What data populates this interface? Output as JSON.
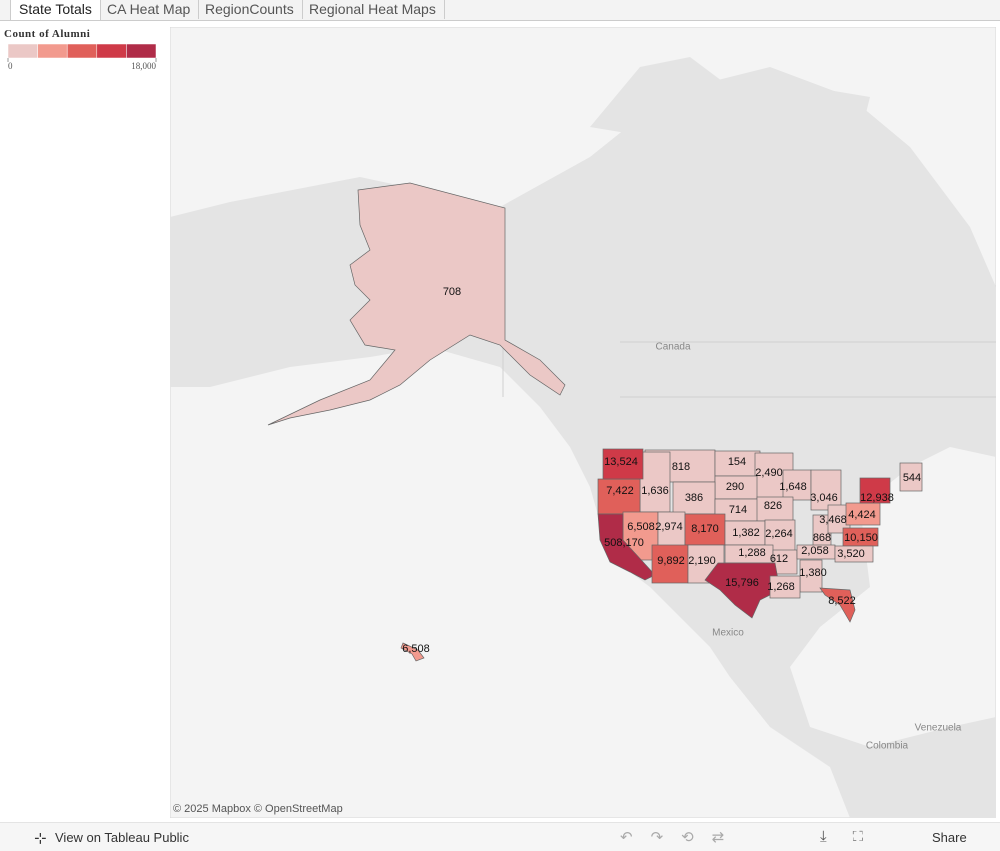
{
  "tabs": [
    "State Totals",
    "CA Heat Map",
    "RegionCounts",
    "Regional Heat Maps"
  ],
  "legend": {
    "title": "Count of Alumni",
    "colors": [
      "#ebc8c6",
      "#f29a8e",
      "#e0605a",
      "#cf3a48",
      "#b02c48"
    ],
    "range": [
      0,
      18000
    ],
    "ticks": [
      0,
      {
        "value": 18000,
        "label": "18,000"
      }
    ]
  },
  "map": {
    "regions": [
      {
        "value": 708,
        "label": "708"
      },
      {
        "value": 6508,
        "label": "6,508"
      },
      {
        "value": 818,
        "label": "818"
      },
      {
        "value": 154,
        "label": "154"
      },
      {
        "value": 2490,
        "label": "2,490"
      },
      {
        "value": 290,
        "label": "290"
      },
      {
        "value": 386,
        "label": "386"
      },
      {
        "value": 1648,
        "label": "1,648"
      },
      {
        "value": 3046,
        "label": "3,046"
      },
      {
        "value": 714,
        "label": "714"
      },
      {
        "value": 826,
        "label": "826"
      },
      {
        "value": 1636,
        "label": "1,636"
      },
      {
        "value": 7422,
        "label": "7,422"
      },
      {
        "value": 13524,
        "label": "13,524"
      },
      {
        "value": 6508,
        "label": "6,508"
      },
      {
        "value": 2974,
        "label": "2,974"
      },
      {
        "value": 8170,
        "label": "8,170"
      },
      {
        "value": 1382,
        "label": "1,382"
      },
      {
        "value": 2264,
        "label": "2,264"
      },
      {
        "value": 868,
        "label": "868"
      },
      {
        "value": 3468,
        "label": "3,468"
      },
      {
        "value": 4424,
        "label": "4,424"
      },
      {
        "value": 12938,
        "label": "12,938"
      },
      {
        "value": 544,
        "label": "544"
      },
      {
        "value": 10150,
        "label": "10,150"
      },
      {
        "value": 508170,
        "label": "508,170"
      },
      {
        "value": 9892,
        "label": "9,892"
      },
      {
        "value": 2190,
        "label": "2,190"
      },
      {
        "value": 1288,
        "label": "1,288"
      },
      {
        "value": 612,
        "label": "612"
      },
      {
        "value": 2058,
        "label": "2,058"
      },
      {
        "value": 3520,
        "label": "3,520"
      },
      {
        "value": 15796,
        "label": "15,796"
      },
      {
        "value": 1380,
        "label": "1,380"
      },
      {
        "value": 1268,
        "label": "1,268"
      },
      {
        "value": 8522,
        "label": "8,522"
      }
    ],
    "place_labels": [
      "Canada",
      "Mexico",
      "Venezuela",
      "Colombia"
    ],
    "attribution": "© 2025 Mapbox © OpenStreetMap"
  },
  "footer": {
    "link": "View on Tableau Public",
    "share": "Share"
  }
}
